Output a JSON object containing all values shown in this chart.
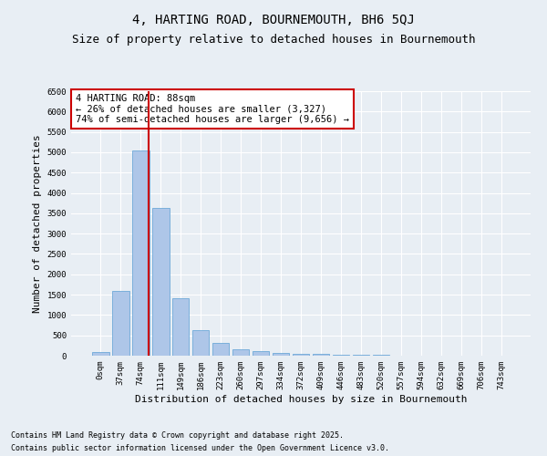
{
  "title1": "4, HARTING ROAD, BOURNEMOUTH, BH6 5QJ",
  "title2": "Size of property relative to detached houses in Bournemouth",
  "xlabel": "Distribution of detached houses by size in Bournemouth",
  "ylabel": "Number of detached properties",
  "bin_labels": [
    "0sqm",
    "37sqm",
    "74sqm",
    "111sqm",
    "149sqm",
    "186sqm",
    "223sqm",
    "260sqm",
    "297sqm",
    "334sqm",
    "372sqm",
    "409sqm",
    "446sqm",
    "483sqm",
    "520sqm",
    "557sqm",
    "594sqm",
    "632sqm",
    "669sqm",
    "706sqm",
    "743sqm"
  ],
  "bar_heights": [
    100,
    1600,
    5050,
    3620,
    1420,
    620,
    310,
    155,
    105,
    72,
    55,
    38,
    25,
    18,
    12,
    8,
    6,
    4,
    3,
    2,
    1
  ],
  "bar_color": "#aec6e8",
  "bar_edge_color": "#5a9fd4",
  "bar_width": 0.85,
  "vline_x": 88,
  "vline_color": "#cc0000",
  "annotation_text": "4 HARTING ROAD: 88sqm\n← 26% of detached houses are smaller (3,327)\n74% of semi-detached houses are larger (9,656) →",
  "annotation_box_color": "#ffffff",
  "annotation_box_edge": "#cc0000",
  "ylim": [
    0,
    6500
  ],
  "yticks": [
    0,
    500,
    1000,
    1500,
    2000,
    2500,
    3000,
    3500,
    4000,
    4500,
    5000,
    5500,
    6000,
    6500
  ],
  "footer1": "Contains HM Land Registry data © Crown copyright and database right 2025.",
  "footer2": "Contains public sector information licensed under the Open Government Licence v3.0.",
  "bg_color": "#e8eef4",
  "plot_bg_color": "#e8eef4",
  "title1_fontsize": 10,
  "title2_fontsize": 9,
  "xlabel_fontsize": 8,
  "ylabel_fontsize": 8,
  "tick_fontsize": 6.5,
  "annotation_fontsize": 7.5,
  "footer_fontsize": 6
}
